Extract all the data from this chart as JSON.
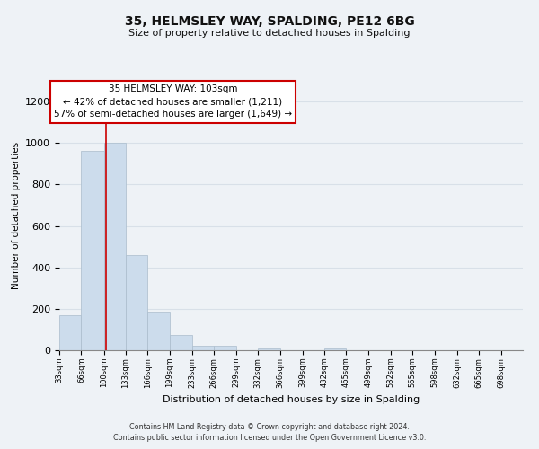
{
  "title": "35, HELMSLEY WAY, SPALDING, PE12 6BG",
  "subtitle": "Size of property relative to detached houses in Spalding",
  "xlabel": "Distribution of detached houses by size in Spalding",
  "ylabel": "Number of detached properties",
  "footer_line1": "Contains HM Land Registry data © Crown copyright and database right 2024.",
  "footer_line2": "Contains public sector information licensed under the Open Government Licence v3.0.",
  "bar_edges": [
    33,
    66,
    100,
    133,
    166,
    199,
    233,
    266,
    299,
    332,
    366,
    399,
    432,
    465,
    499,
    532,
    565,
    598,
    632,
    665,
    698,
    731
  ],
  "bar_heights": [
    170,
    960,
    1000,
    460,
    185,
    75,
    22,
    20,
    0,
    10,
    0,
    0,
    10,
    0,
    0,
    0,
    0,
    0,
    0,
    0,
    0
  ],
  "bar_color": "#ccdcec",
  "bar_edgecolor": "#aabccc",
  "property_size": 103,
  "property_label": "35 HELMSLEY WAY: 103sqm",
  "annotation_line1": "← 42% of detached houses are smaller (1,211)",
  "annotation_line2": "57% of semi-detached houses are larger (1,649) →",
  "vline_color": "#cc0000",
  "annotation_box_edgecolor": "#cc0000",
  "annotation_box_facecolor": "#ffffff",
  "ylim": [
    0,
    1300
  ],
  "yticks": [
    0,
    200,
    400,
    600,
    800,
    1000,
    1200
  ],
  "grid_color": "#d8e0e8",
  "background_color": "#eef2f6",
  "tick_labels": [
    "33sqm",
    "66sqm",
    "100sqm",
    "133sqm",
    "166sqm",
    "199sqm",
    "233sqm",
    "266sqm",
    "299sqm",
    "332sqm",
    "366sqm",
    "399sqm",
    "432sqm",
    "465sqm",
    "499sqm",
    "532sqm",
    "565sqm",
    "598sqm",
    "632sqm",
    "665sqm",
    "698sqm"
  ]
}
